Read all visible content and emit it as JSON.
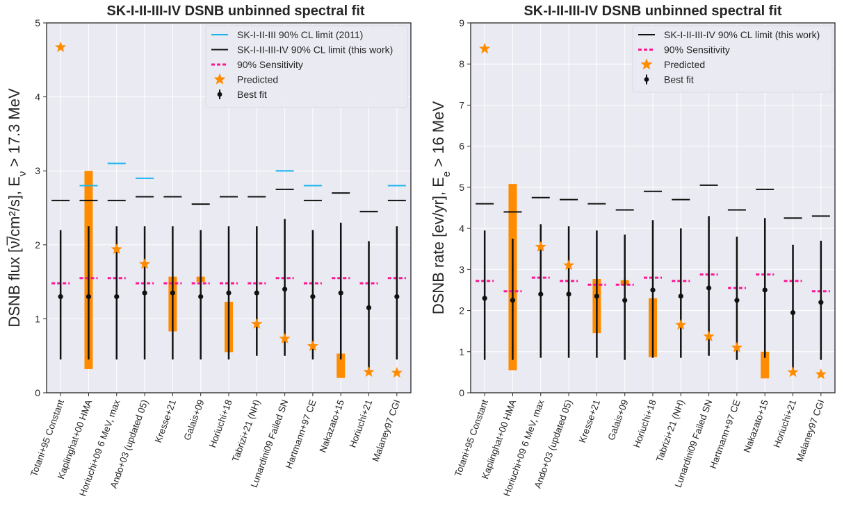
{
  "chart_data": [
    {
      "type": "scatter",
      "title": "SK-I-II-III-IV DSNB unbinned spectral fit",
      "ylabel_main": "DSNB flux [ν̅/cm²/s], E",
      "ylabel_sub": "ν",
      "ylabel_tail": " > 17.3 MeV",
      "ylim": [
        0,
        5
      ],
      "yticks": [
        "0",
        "1",
        "2",
        "3",
        "4",
        "5"
      ],
      "ytick_values": [
        0,
        1,
        2,
        3,
        4,
        5
      ],
      "grid": true,
      "legend_position": "top-right",
      "legend": [
        {
          "label": "SK-I-II-III 90% CL limit (2011)",
          "marker": "cyan-line"
        },
        {
          "label": "SK-I-II-III-IV 90% CL limit (this work)",
          "marker": "black-line"
        },
        {
          "label": "90% Sensitivity",
          "marker": "magenta-dash"
        },
        {
          "label": "Predicted",
          "marker": "star"
        },
        {
          "label": "Best fit",
          "marker": "errorbar"
        }
      ],
      "categories": [
        "Totani+95 Constant",
        "Kaplinghat+00 HMA",
        "Horiuchi+09 6 MeV, max",
        "Ando+03 (updated 05)",
        "Kresse+21",
        "Galais+09",
        "Horiuchi+18",
        "Tabrizi+21 (NH)",
        "Lunardini09 Failed SN",
        "Hartmann+97 CE",
        "Nakazato+15",
        "Horiuchi+21",
        "Malaney97 CGI"
      ],
      "best_fit": [
        1.3,
        1.3,
        1.3,
        1.35,
        1.35,
        1.3,
        1.35,
        1.35,
        1.4,
        1.3,
        1.35,
        1.15,
        1.3
      ],
      "err_low": [
        0.45,
        0.45,
        0.45,
        0.45,
        0.45,
        0.45,
        0.45,
        0.5,
        0.5,
        0.45,
        0.45,
        0.3,
        0.45
      ],
      "err_high": [
        2.2,
        2.25,
        2.25,
        2.25,
        2.25,
        2.2,
        2.25,
        2.25,
        2.35,
        2.2,
        2.3,
        2.05,
        2.25
      ],
      "limit_this_work": [
        2.6,
        2.6,
        2.6,
        2.65,
        2.65,
        2.55,
        2.65,
        2.65,
        2.75,
        2.6,
        2.7,
        2.45,
        2.6
      ],
      "limit_2011": [
        null,
        2.8,
        3.1,
        2.9,
        null,
        null,
        null,
        null,
        3.0,
        2.8,
        null,
        null,
        2.8
      ],
      "sensitivity": [
        1.48,
        1.55,
        1.55,
        1.48,
        1.48,
        1.48,
        1.48,
        1.48,
        1.55,
        1.48,
        1.55,
        1.48,
        1.55
      ],
      "predicted": [
        4.67,
        null,
        1.94,
        1.74,
        null,
        null,
        null,
        0.93,
        0.73,
        0.63,
        null,
        0.28,
        0.27
      ],
      "predicted_band": [
        null,
        [
          0.32,
          3.0
        ],
        null,
        null,
        [
          0.83,
          1.57
        ],
        [
          1.5,
          1.57
        ],
        [
          0.55,
          1.23
        ],
        null,
        null,
        null,
        [
          0.2,
          0.53
        ],
        null,
        null
      ]
    },
    {
      "type": "scatter",
      "title": "SK-I-II-III-IV DSNB unbinned spectral fit",
      "ylabel_main": "DSNB rate [ev/yr], E",
      "ylabel_sub": "e",
      "ylabel_tail": " > 16 MeV",
      "ylim": [
        0,
        9
      ],
      "yticks": [
        "0",
        "1",
        "2",
        "3",
        "4",
        "5",
        "6",
        "7",
        "8",
        "9"
      ],
      "ytick_values": [
        0,
        1,
        2,
        3,
        4,
        5,
        6,
        7,
        8,
        9
      ],
      "grid": true,
      "legend_position": "top-right",
      "legend": [
        {
          "label": "SK-I-II-III-IV 90% CL limit (this work)",
          "marker": "black-line"
        },
        {
          "label": "90% Sensitivity",
          "marker": "magenta-dash"
        },
        {
          "label": "Predicted",
          "marker": "star"
        },
        {
          "label": "Best fit",
          "marker": "errorbar"
        }
      ],
      "categories": [
        "Totani+95 Constant",
        "Kaplinghat+00 HMA",
        "Horiuchi+09 6 MeV, max",
        "Ando+03 (updated 05)",
        "Kresse+21",
        "Galais+09",
        "Horiuchi+18",
        "Tabrizi+21 (NH)",
        "Lunardini09 Failed SN",
        "Hartmann+97 CE",
        "Nakazato+15",
        "Horiuchi+21",
        "Malaney97 CGI"
      ],
      "best_fit": [
        2.3,
        2.25,
        2.4,
        2.4,
        2.35,
        2.25,
        2.5,
        2.35,
        2.55,
        2.25,
        2.5,
        1.95,
        2.2
      ],
      "err_low": [
        0.8,
        0.8,
        0.85,
        0.85,
        0.85,
        0.8,
        0.85,
        0.85,
        0.9,
        0.8,
        0.85,
        0.5,
        0.8
      ],
      "err_high": [
        3.95,
        3.75,
        4.1,
        4.05,
        3.95,
        3.85,
        4.2,
        4.0,
        4.3,
        3.8,
        4.25,
        3.6,
        3.7
      ],
      "limit_this_work": [
        4.6,
        4.4,
        4.75,
        4.7,
        4.6,
        4.45,
        4.9,
        4.7,
        5.05,
        4.45,
        4.95,
        4.25,
        4.3
      ],
      "sensitivity": [
        2.72,
        2.47,
        2.8,
        2.72,
        2.63,
        2.63,
        2.8,
        2.72,
        2.88,
        2.55,
        2.88,
        2.72,
        2.47
      ],
      "predicted": [
        8.37,
        null,
        3.55,
        3.1,
        null,
        null,
        null,
        1.65,
        1.37,
        1.1,
        null,
        0.5,
        0.45
      ],
      "predicted_band": [
        null,
        [
          0.55,
          5.08
        ],
        null,
        null,
        [
          1.45,
          2.77
        ],
        [
          2.62,
          2.74
        ],
        [
          0.87,
          2.3
        ],
        null,
        null,
        null,
        [
          0.35,
          1.0
        ],
        null,
        null
      ]
    }
  ],
  "colors": {
    "background": "#eaeaf2",
    "grid": "#ffffff",
    "limit_2011": "#1bb6f0",
    "limit_this_work": "#111111",
    "sensitivity": "#ff1493",
    "predicted": "#ff8c00",
    "best_fit": "#111111"
  }
}
